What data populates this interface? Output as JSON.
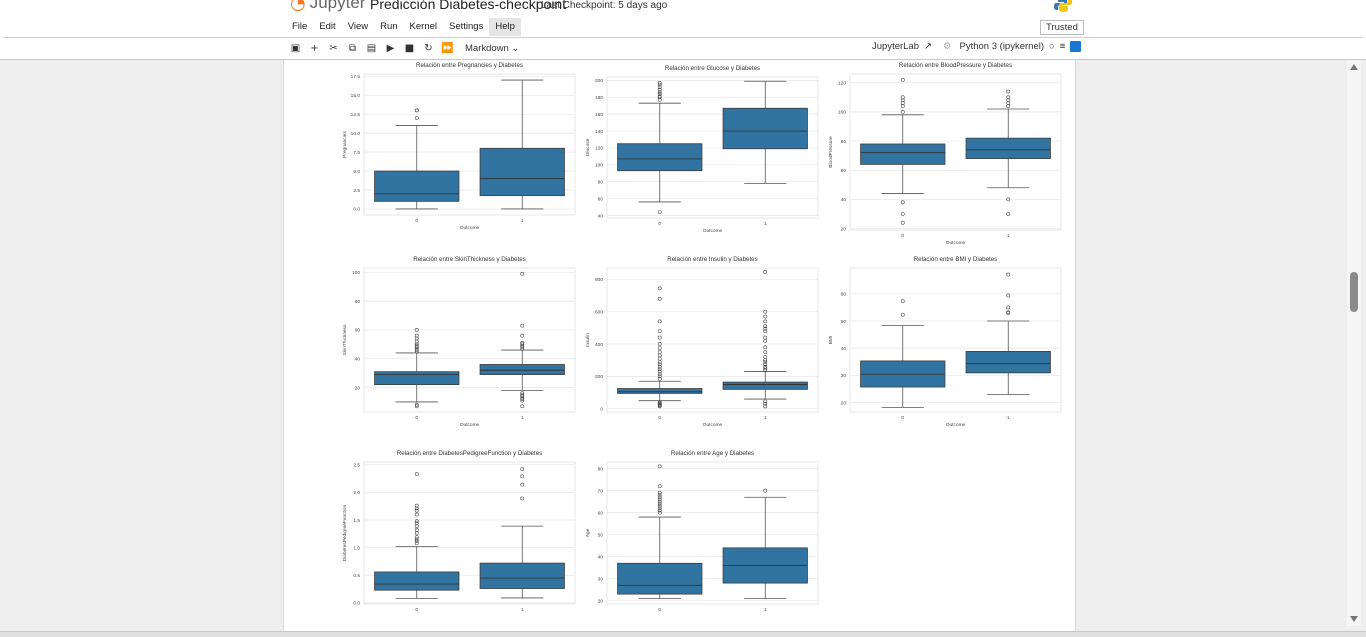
{
  "app": {
    "logo_text": "Jupyter",
    "notebook_title": "Predicción Diabetes-checkpoint",
    "checkpoint": "Last Checkpoint: 5 days ago",
    "trusted": "Trusted"
  },
  "menu": [
    "File",
    "Edit",
    "View",
    "Run",
    "Kernel",
    "Settings",
    "Help"
  ],
  "toolbar": {
    "icons": [
      "save-icon",
      "add-cell-icon",
      "cut-icon",
      "copy-icon",
      "paste-icon",
      "run-icon",
      "stop-icon",
      "restart-icon",
      "run-all-icon"
    ],
    "cell_type": "Markdown",
    "jupyterlab": "JupyterLab",
    "kernel": "Python 3 (ipykernel)"
  },
  "colors": {
    "box": "#3274a1",
    "grid": "#e6e6e6",
    "accent": "#1976d2"
  },
  "chart_data": [
    {
      "type": "box",
      "title": "Relación entre Pregnancies y Diabetes",
      "xlabel": "Outcome",
      "ylabel": "Pregnancies",
      "categories": [
        "0",
        "1"
      ],
      "ylim": [
        -0.8,
        17.8
      ],
      "yticks": [
        0.0,
        2.5,
        5.0,
        7.5,
        10.0,
        12.5,
        15.0,
        17.5
      ],
      "ytick_labels": [
        "0.0",
        "2.5",
        "5.0",
        "7.5",
        "10.0",
        "12.5",
        "15.0",
        "17.5"
      ],
      "boxes": [
        {
          "whislo": 0,
          "q1": 1,
          "med": 2,
          "q3": 5,
          "whishi": 11,
          "fliers": [
            12,
            13,
            13
          ]
        },
        {
          "whislo": 0,
          "q1": 1.75,
          "med": 4,
          "q3": 8,
          "whishi": 17,
          "fliers": []
        }
      ]
    },
    {
      "type": "box",
      "title": "Relación entre Glucose y Diabetes",
      "xlabel": "Outcome",
      "ylabel": "Glucose",
      "categories": [
        "0",
        "1"
      ],
      "ylim": [
        37,
        204
      ],
      "yticks": [
        40,
        60,
        80,
        100,
        120,
        140,
        160,
        180,
        200
      ],
      "ytick_labels": [
        "40",
        "60",
        "80",
        "100",
        "120",
        "140",
        "160",
        "180",
        "200"
      ],
      "boxes": [
        {
          "whislo": 56,
          "q1": 93,
          "med": 107,
          "q3": 125,
          "whishi": 173,
          "fliers": [
            44,
            177,
            180,
            181,
            184,
            186,
            189,
            192,
            195,
            197
          ]
        },
        {
          "whislo": 78,
          "q1": 119,
          "med": 140,
          "q3": 167,
          "whishi": 199,
          "fliers": []
        }
      ]
    },
    {
      "type": "box",
      "title": "Relación entre BloodPressure y Diabetes",
      "xlabel": "Outcome",
      "ylabel": "BloodPressure",
      "categories": [
        "0",
        "1"
      ],
      "ylim": [
        19,
        126
      ],
      "yticks": [
        20,
        40,
        60,
        80,
        100,
        120
      ],
      "ytick_labels": [
        "20",
        "40",
        "60",
        "80",
        "100",
        "120"
      ],
      "boxes": [
        {
          "whislo": 44,
          "q1": 64,
          "med": 72,
          "q3": 78,
          "whishi": 98,
          "fliers": [
            24,
            30,
            38,
            100,
            104,
            106,
            108,
            110,
            122
          ]
        },
        {
          "whislo": 48,
          "q1": 68,
          "med": 74,
          "q3": 82,
          "whishi": 102,
          "fliers": [
            30,
            40,
            104,
            106,
            108,
            110,
            114
          ]
        }
      ]
    },
    {
      "type": "box",
      "title": "Relación entre SkinThickness y Diabetes",
      "xlabel": "Outcome",
      "ylabel": "SkinThickness",
      "categories": [
        "0",
        "1"
      ],
      "ylim": [
        3,
        103
      ],
      "yticks": [
        20,
        40,
        60,
        80,
        100
      ],
      "ytick_labels": [
        "20",
        "40",
        "60",
        "80",
        "100"
      ],
      "boxes": [
        {
          "whislo": 10,
          "q1": 22,
          "med": 29,
          "q3": 31,
          "whishi": 44,
          "fliers": [
            7,
            8,
            45,
            46,
            47,
            48,
            49,
            50,
            52,
            54,
            56,
            60
          ]
        },
        {
          "whislo": 18,
          "q1": 29,
          "med": 32,
          "q3": 36,
          "whishi": 46,
          "fliers": [
            7,
            11,
            12,
            13,
            14,
            15,
            16,
            47,
            48,
            49,
            50,
            51,
            56,
            63,
            99
          ]
        }
      ]
    },
    {
      "type": "box",
      "title": "Relación entre Insulin y Diabetes",
      "xlabel": "Outcome",
      "ylabel": "Insulin",
      "categories": [
        "0",
        "1"
      ],
      "ylim": [
        -20,
        870
      ],
      "yticks": [
        0,
        200,
        400,
        600,
        800
      ],
      "ytick_labels": [
        "0",
        "200",
        "400",
        "600",
        "800"
      ],
      "boxes": [
        {
          "whislo": 50,
          "q1": 95,
          "med": 105,
          "q3": 125,
          "whishi": 170,
          "fliers": [
            15,
            20,
            25,
            30,
            35,
            40,
            185,
            200,
            215,
            230,
            245,
            260,
            275,
            290,
            310,
            330,
            350,
            375,
            400,
            440,
            480,
            540,
            680,
            744
          ]
        },
        {
          "whislo": 60,
          "q1": 120,
          "med": 150,
          "q3": 165,
          "whishi": 230,
          "fliers": [
            15,
            30,
            45,
            240,
            250,
            260,
            275,
            290,
            300,
            320,
            350,
            380,
            420,
            440,
            480,
            495,
            510,
            540,
            570,
            600,
            846
          ]
        }
      ]
    },
    {
      "type": "box",
      "title": "Relación entre BMI y Diabetes",
      "xlabel": "Outcome",
      "ylabel": "BMI",
      "categories": [
        "0",
        "1"
      ],
      "ylim": [
        16.5,
        69.5
      ],
      "yticks": [
        20,
        30,
        40,
        50,
        60
      ],
      "ytick_labels": [
        "20",
        "30",
        "40",
        "50",
        "60"
      ],
      "boxes": [
        {
          "whislo": 18.2,
          "q1": 25.7,
          "med": 30.4,
          "q3": 35.3,
          "whishi": 48.3,
          "fliers": [
            52.3,
            57.3
          ]
        },
        {
          "whislo": 22.9,
          "q1": 30.9,
          "med": 34.3,
          "q3": 38.8,
          "whishi": 50.0,
          "fliers": [
            52.9,
            53.2,
            55.0,
            59.4,
            67.1
          ]
        }
      ]
    },
    {
      "type": "box",
      "title": "Relación entre DiabetesPedigreeFunction y Diabetes",
      "xlabel": "",
      "ylabel": "DiabetesPedigreeFunction",
      "categories": [
        "0",
        "1"
      ],
      "ylim": [
        -0.02,
        2.55
      ],
      "yticks": [
        0.0,
        0.5,
        1.0,
        1.5,
        2.0,
        2.5
      ],
      "ytick_labels": [
        "0.0",
        "0.5",
        "1.0",
        "1.5",
        "2.0",
        "2.5"
      ],
      "boxes": [
        {
          "whislo": 0.08,
          "q1": 0.23,
          "med": 0.34,
          "q3": 0.56,
          "whishi": 1.02,
          "fliers": [
            1.08,
            1.12,
            1.15,
            1.19,
            1.26,
            1.32,
            1.39,
            1.44,
            1.48,
            1.6,
            1.67,
            1.71,
            1.76,
            2.33
          ]
        },
        {
          "whislo": 0.09,
          "q1": 0.26,
          "med": 0.45,
          "q3": 0.72,
          "whishi": 1.39,
          "fliers": [
            1.89,
            2.14,
            2.29,
            2.42
          ]
        }
      ]
    },
    {
      "type": "box",
      "title": "Relación entre Age y Diabetes",
      "xlabel": "",
      "ylabel": "Age",
      "categories": [
        "0",
        "1"
      ],
      "ylim": [
        18.5,
        83
      ],
      "yticks": [
        20,
        30,
        40,
        50,
        60,
        70,
        80
      ],
      "ytick_labels": [
        "20",
        "30",
        "40",
        "50",
        "60",
        "70",
        "80"
      ],
      "boxes": [
        {
          "whislo": 21,
          "q1": 23,
          "med": 27,
          "q3": 37,
          "whishi": 58,
          "fliers": [
            60,
            61,
            62,
            63,
            64,
            65,
            66,
            67,
            68,
            69,
            72,
            81
          ]
        },
        {
          "whislo": 21,
          "q1": 28,
          "med": 36,
          "q3": 44,
          "whishi": 67,
          "fliers": [
            70
          ]
        }
      ]
    }
  ]
}
